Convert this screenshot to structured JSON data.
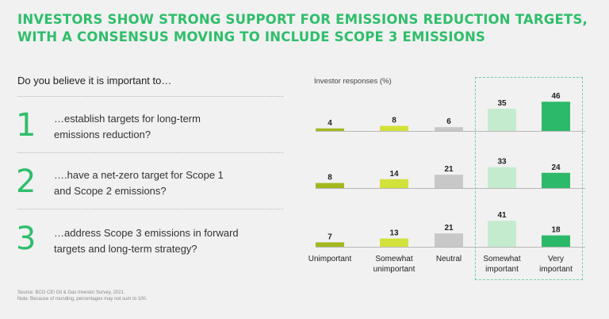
{
  "title_lines": [
    "INVESTORS SHOW STRONG SUPPORT FOR EMISSIONS REDUCTION TARGETS,",
    "WITH A CONSENSUS MOVING TO INCLUDE SCOPE 3 EMISSIONS"
  ],
  "prompt": "Do you believe it is important to…",
  "questions": [
    {
      "number": "1",
      "line1": "…establish targets for long-term",
      "line2": "emissions reduction?"
    },
    {
      "number": "2",
      "line1": "….have a net-zero target for Scope 1",
      "line2": "and Scope 2 emissions?"
    },
    {
      "number": "3",
      "line1": "…address Scope 3 emissions in forward",
      "line2": "targets and long-term strategy?"
    }
  ],
  "footer": {
    "source": "Source: BCG CEI Oil & Gas Investor Survey, 2021.",
    "note": "Note: Because of rounding, percentages may not sum to 100."
  },
  "colors": {
    "title": "#2fbe6b",
    "unimportant": "#a4b81e",
    "somewhat_unimportant": "#d3e23a",
    "neutral": "#c8c8c8",
    "somewhat_important": "#c5ebcf",
    "very_important": "#2db96a"
  },
  "chart_data": {
    "type": "bar",
    "ylabel": "Investor responses (%)",
    "categories": [
      "Unimportant",
      "Somewhat unimportant",
      "Neutral",
      "Somewhat important",
      "Very important"
    ],
    "category_labels": [
      [
        "Unimportant"
      ],
      [
        "Somewhat",
        "unimportant"
      ],
      [
        "Neutral"
      ],
      [
        "Somewhat",
        "important"
      ],
      [
        "Very",
        "important"
      ]
    ],
    "series": [
      {
        "values": [
          4,
          8,
          6,
          35,
          46
        ]
      },
      {
        "values": [
          8,
          14,
          21,
          33,
          24
        ]
      },
      {
        "values": [
          7,
          13,
          21,
          41,
          18
        ]
      }
    ],
    "highlighted_categories": [
      "Somewhat important",
      "Very important"
    ],
    "grid": false,
    "legend": "none"
  }
}
